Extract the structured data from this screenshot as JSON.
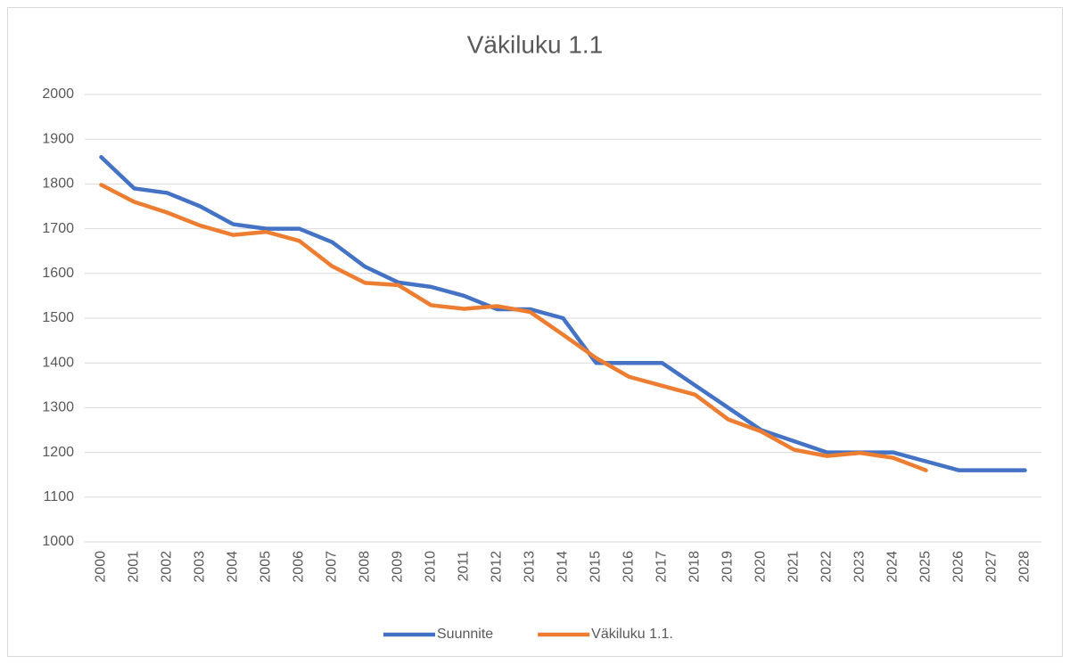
{
  "chart_data": {
    "type": "line",
    "title": "Väkiluku 1.1",
    "categories": [
      "2000",
      "2001",
      "2002",
      "2003",
      "2004",
      "2005",
      "2006",
      "2007",
      "2008",
      "2009",
      "2010",
      "2011",
      "2012",
      "2013",
      "2014",
      "2015",
      "2016",
      "2017",
      "2018",
      "2019",
      "2020",
      "2021",
      "2022",
      "2023",
      "2024",
      "2025",
      "2026",
      "2027",
      "2028"
    ],
    "series": [
      {
        "name": "Suunnite",
        "color": "#4472c4",
        "values": [
          1860,
          1790,
          1780,
          1750,
          1710,
          1700,
          1700,
          1670,
          1615,
          1580,
          1570,
          1550,
          1520,
          1520,
          1500,
          1400,
          1400,
          1400,
          1350,
          1300,
          1250,
          1225,
          1200,
          1200,
          1200,
          1180,
          1160,
          1160,
          1160
        ]
      },
      {
        "name": "Väkiluku 1.1.",
        "color": "#ed7d31",
        "values": [
          1798,
          1760,
          1736,
          1707,
          1686,
          1693,
          1673,
          1616,
          1579,
          1574,
          1529,
          1521,
          1527,
          1514,
          1463,
          1411,
          1369,
          1349,
          1329,
          1274,
          1247,
          1206,
          1192,
          1199,
          1188,
          1160,
          null,
          null,
          null
        ]
      }
    ],
    "ylim": [
      1000,
      2000
    ],
    "yticks": [
      1000,
      1100,
      1200,
      1300,
      1400,
      1500,
      1600,
      1700,
      1800,
      1900,
      2000
    ],
    "grid": true,
    "legend": "bottom"
  }
}
